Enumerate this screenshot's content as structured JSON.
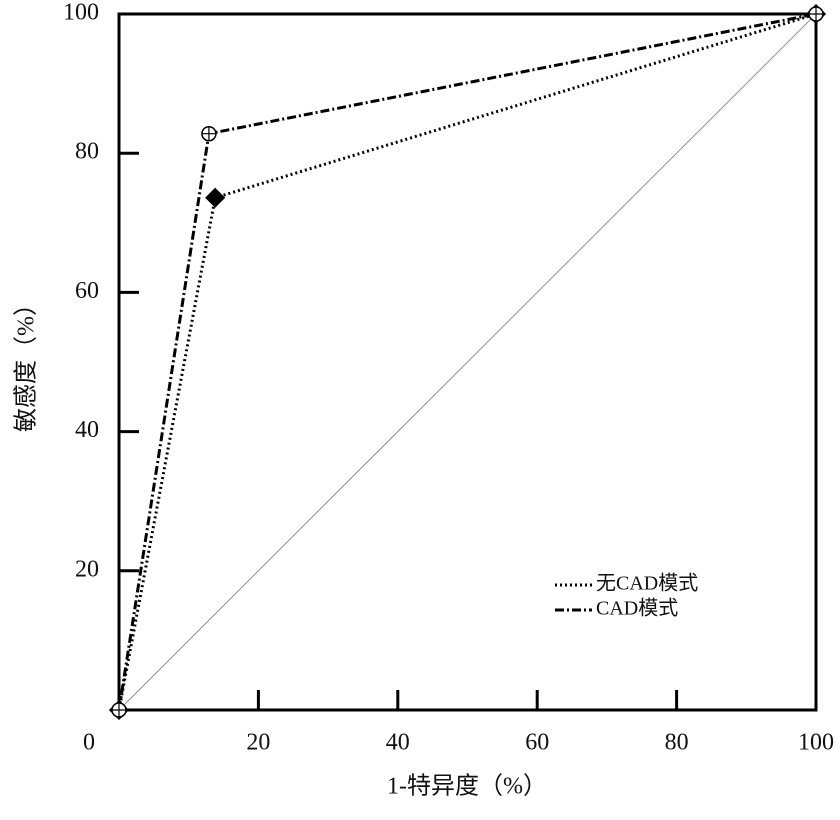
{
  "chart_data": {
    "type": "line",
    "x_label": "1-特异度（%）",
    "y_label": "敏感度（%）",
    "xlim": [
      0,
      100
    ],
    "ylim": [
      0,
      100
    ],
    "xticks": [
      0,
      20,
      40,
      60,
      80,
      100
    ],
    "yticks": [
      20,
      40,
      60,
      80,
      100
    ],
    "series": [
      {
        "name": "无CAD模式",
        "color": "#000000",
        "dash": "2,3",
        "marker": "diamond",
        "x": [
          0,
          13.8,
          100
        ],
        "values": [
          0,
          73.6,
          100
        ]
      },
      {
        "name": "CAD模式",
        "color": "#000000",
        "dash": "9,3,2,3",
        "marker": "circle",
        "x": [
          0,
          12.9,
          100
        ],
        "values": [
          0,
          82.8,
          100
        ]
      }
    ],
    "diagonal": true
  }
}
